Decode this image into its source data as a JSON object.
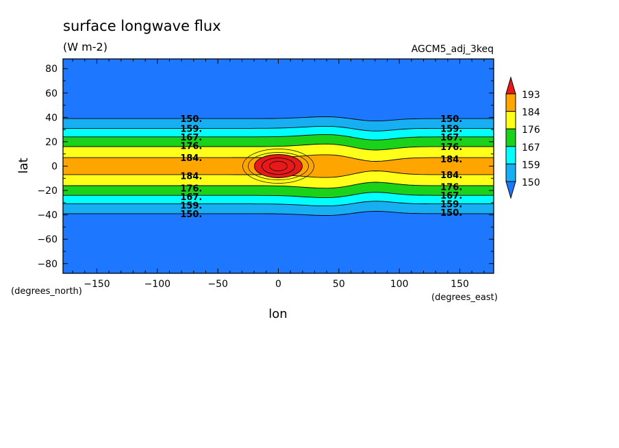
{
  "chart_data": {
    "type": "heatmap",
    "title": "surface longwave flux",
    "subtitle": "(W m-2)",
    "dataset_label": "AGCM5_adj_3keq",
    "xlabel": "lon",
    "ylabel": "lat",
    "x_units": "(degrees_east)",
    "y_units": "(degrees_north)",
    "xlim": [
      -178,
      178
    ],
    "ylim": [
      -88,
      88
    ],
    "x_ticks": [
      -150,
      -100,
      -50,
      0,
      50,
      100,
      150
    ],
    "y_ticks": [
      -80,
      -60,
      -40,
      -20,
      0,
      20,
      40,
      60,
      80
    ],
    "grid": false,
    "legend": "right",
    "colorbar": {
      "levels": [
        150,
        159,
        167,
        176,
        184,
        193
      ],
      "colors": {
        "below": "#1e78ff",
        "c150_159": "#17aef2",
        "c159_167": "#00ffff",
        "c167_176": "#1ad21a",
        "c176_184": "#ffff1a",
        "c184_193": "#ffa500",
        "above": "#e61a1a"
      }
    },
    "bands": [
      {
        "level": 150,
        "north_lat": 39,
        "south_lat": -39
      },
      {
        "level": 159,
        "north_lat": 31,
        "south_lat": -31
      },
      {
        "level": 167,
        "north_lat": 24,
        "south_lat": -24
      },
      {
        "level": 176,
        "north_lat": 16,
        "south_lat": -16
      },
      {
        "level": 184,
        "north_lat": 7,
        "south_lat": -7
      }
    ],
    "hotspot": {
      "lon": 0,
      "lat": 0,
      "level": 193
    },
    "contour_labels": [
      {
        "text": "150.",
        "lon": -72,
        "lat": 39
      },
      {
        "text": "159.",
        "lon": -72,
        "lat": 31
      },
      {
        "text": "167.",
        "lon": -72,
        "lat": 24
      },
      {
        "text": "176.",
        "lon": -72,
        "lat": 17
      },
      {
        "text": "184.",
        "lon": -72,
        "lat": 7
      },
      {
        "text": "184.",
        "lon": -72,
        "lat": -8
      },
      {
        "text": "176.",
        "lon": -72,
        "lat": -18
      },
      {
        "text": "167.",
        "lon": -72,
        "lat": -25
      },
      {
        "text": "159.",
        "lon": -72,
        "lat": -32
      },
      {
        "text": "150.",
        "lon": -72,
        "lat": -39
      },
      {
        "text": "150.",
        "lon": 143,
        "lat": 39
      },
      {
        "text": "159.",
        "lon": 143,
        "lat": 31
      },
      {
        "text": "167.",
        "lon": 143,
        "lat": 24
      },
      {
        "text": "176.",
        "lon": 143,
        "lat": 16
      },
      {
        "text": "184.",
        "lon": 143,
        "lat": 6
      },
      {
        "text": "184.",
        "lon": 143,
        "lat": -7
      },
      {
        "text": "176.",
        "lon": 143,
        "lat": -17
      },
      {
        "text": "167.",
        "lon": 143,
        "lat": -24
      },
      {
        "text": "159.",
        "lon": 143,
        "lat": -31
      },
      {
        "text": "150.",
        "lon": 143,
        "lat": -38
      }
    ]
  }
}
